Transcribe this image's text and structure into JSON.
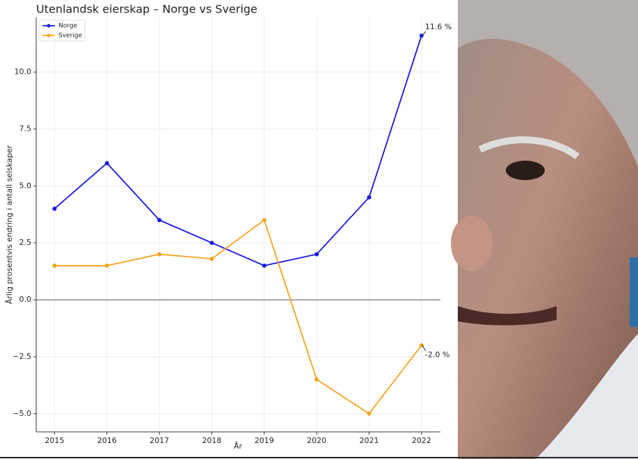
{
  "chart_data": {
    "type": "line",
    "title": "Utenlandsk eierskap – Norge vs Sverige",
    "x_label": "År",
    "y_label": "Årlig prosentvis endring i antall selskaper",
    "x": [
      2015,
      2016,
      2017,
      2018,
      2019,
      2020,
      2021,
      2022
    ],
    "series": [
      {
        "name": "Norge",
        "color": "#1515e6",
        "values": [
          4.0,
          6.0,
          3.5,
          2.5,
          1.5,
          2.0,
          4.5,
          11.6
        ],
        "value_labels": [
          null,
          null,
          null,
          null,
          null,
          null,
          null,
          "11.6 %"
        ]
      },
      {
        "name": "Sverige",
        "color": "#f5a21b",
        "values": [
          1.5,
          1.5,
          2.0,
          1.8,
          3.5,
          -3.5,
          -5.0,
          -2.0
        ],
        "value_labels": [
          null,
          null,
          null,
          null,
          null,
          null,
          null,
          "-2.0 %"
        ]
      }
    ],
    "xlim": [
      2014.65,
      2022.36
    ],
    "ylim": [
      -5.8,
      12.4
    ],
    "xticks": [
      2015,
      2016,
      2017,
      2018,
      2019,
      2020,
      2021,
      2022
    ],
    "yticks": [
      {
        "value": -5,
        "label": "−5.0"
      },
      {
        "value": -2.5,
        "label": "−2.5"
      },
      {
        "value": 0,
        "label": "0.0"
      },
      {
        "value": 2.5,
        "label": "2.5"
      },
      {
        "value": 5,
        "label": "5.0"
      },
      {
        "value": 7.5,
        "label": "7.5"
      },
      {
        "value": 10,
        "label": "10.0"
      }
    ],
    "grid": true,
    "legend": "upper left"
  }
}
